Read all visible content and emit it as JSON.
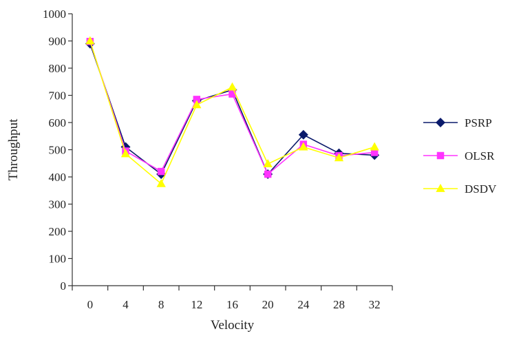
{
  "chart_data": {
    "type": "line",
    "title": "",
    "xlabel": "Velocity",
    "ylabel": "Throughput",
    "categories": [
      "0",
      "4",
      "8",
      "12",
      "16",
      "20",
      "24",
      "28",
      "32"
    ],
    "ylim": [
      0,
      1000
    ],
    "yticks": [
      "0",
      "100",
      "200",
      "300",
      "400",
      "500",
      "600",
      "700",
      "800",
      "900",
      "1000"
    ],
    "grid": false,
    "legend_position": "right",
    "series": [
      {
        "name": "PSRP",
        "color": "#0a1a6b",
        "marker": "diamond",
        "values": [
          890,
          510,
          410,
          680,
          720,
          410,
          555,
          487,
          480
        ]
      },
      {
        "name": "OLSR",
        "color": "#ff33ff",
        "marker": "square",
        "values": [
          898,
          495,
          420,
          685,
          705,
          410,
          520,
          478,
          490
        ]
      },
      {
        "name": "DSDV",
        "color": "#ffff00",
        "marker": "triangle",
        "values": [
          900,
          485,
          375,
          665,
          730,
          448,
          510,
          470,
          510
        ]
      }
    ]
  }
}
